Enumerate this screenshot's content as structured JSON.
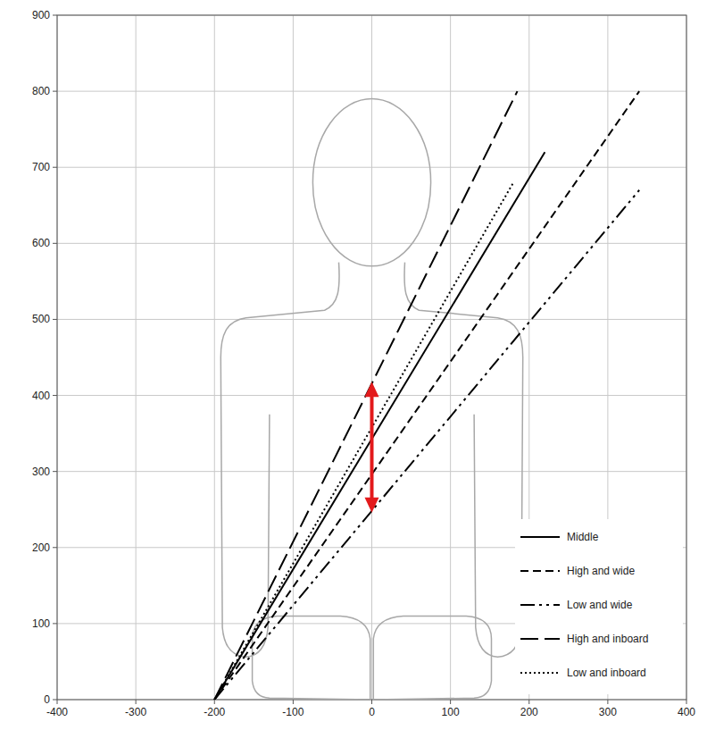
{
  "chart_data": {
    "type": "line",
    "xlim": [
      -400,
      400
    ],
    "ylim": [
      0,
      900
    ],
    "xticks": [
      -400,
      -300,
      -200,
      -100,
      0,
      100,
      200,
      300,
      400
    ],
    "yticks": [
      0,
      100,
      200,
      300,
      400,
      500,
      600,
      700,
      800,
      900
    ],
    "grid": true,
    "legend": "lower right",
    "series": [
      {
        "name": "Middle",
        "color": "#000000",
        "line_style": "solid",
        "x": [
          -200,
          220
        ],
        "values": [
          0,
          720
        ]
      },
      {
        "name": "High and wide",
        "color": "#000000",
        "line_style": "dashed",
        "x": [
          -200,
          340
        ],
        "values": [
          0,
          800
        ]
      },
      {
        "name": "Low and wide",
        "color": "#000000",
        "line_style": "dash-dot",
        "x": [
          -200,
          340
        ],
        "values": [
          0,
          670
        ]
      },
      {
        "name": "High and inboard",
        "color": "#000000",
        "line_style": "long-dash",
        "x": [
          -200,
          185
        ],
        "values": [
          0,
          800
        ]
      },
      {
        "name": "Low and inboard",
        "color": "#000000",
        "line_style": "dotted",
        "x": [
          -200,
          180
        ],
        "values": [
          0,
          680
        ]
      }
    ]
  }
}
